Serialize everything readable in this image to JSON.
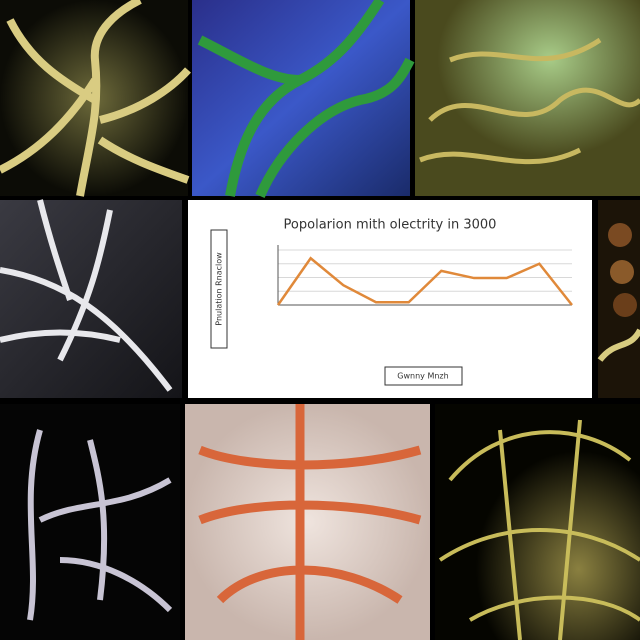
{
  "chart_data": {
    "type": "line",
    "title": "Popolarion mith olectrity in 3000",
    "y_label": "Pnulation Rnaclow",
    "legend": "Gwnny Mnzh",
    "categories": [
      null,
      null,
      null,
      null,
      null,
      null,
      null,
      null,
      null,
      null
    ],
    "series": [
      {
        "name": "Gwnny Mnzh",
        "color": "#e0893a",
        "values": [
          0,
          85,
          36,
          5,
          5,
          62,
          49,
          49,
          75,
          0
        ]
      }
    ],
    "ylim": [
      0,
      100
    ],
    "yticks": [
      0,
      25,
      50,
      75,
      100
    ],
    "grid": true
  }
}
